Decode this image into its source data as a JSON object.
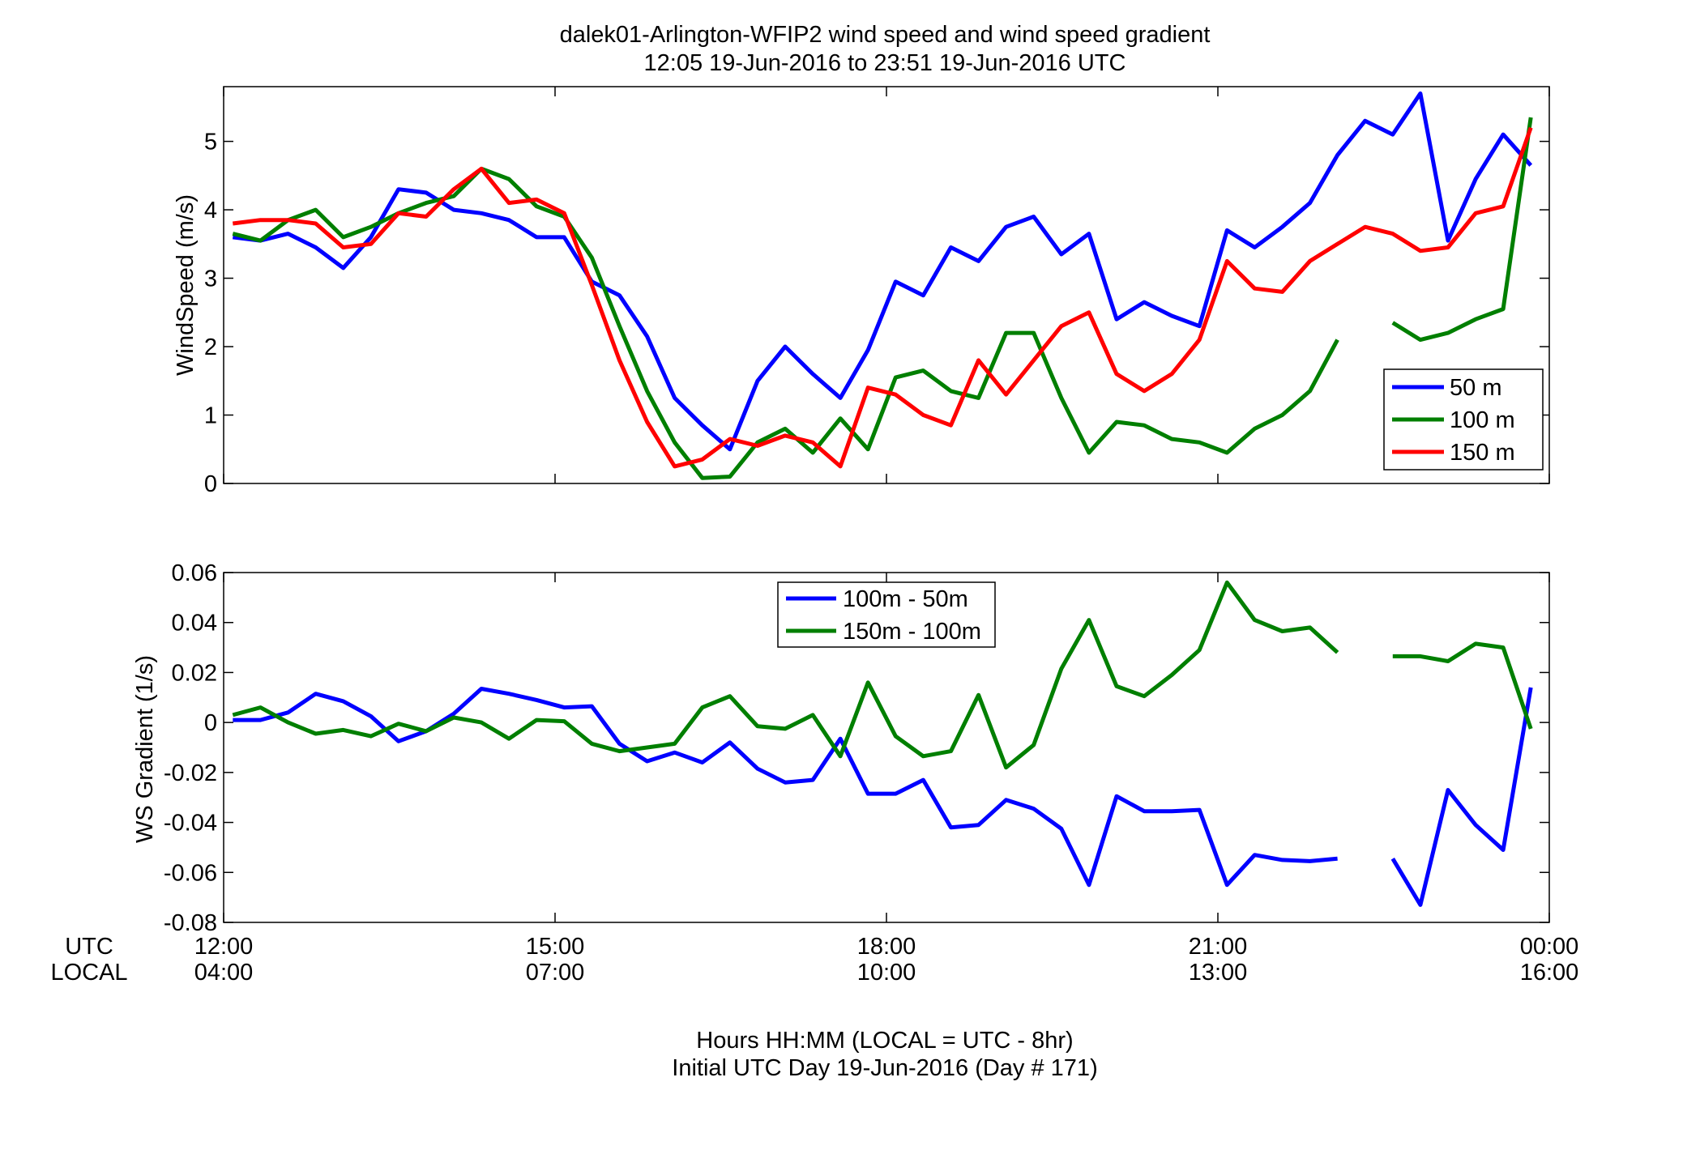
{
  "figure": {
    "title_line1": "dalek01-Arlington-WFIP2  wind speed and wind speed gradient",
    "title_line2": "12:05 19-Jun-2016 to 23:51 19-Jun-2016  UTC",
    "xlabel_line1": "Hours HH:MM  (LOCAL = UTC - 8hr)",
    "xlabel_line2": "Initial UTC Day 19-Jun-2016 (Day # 171)",
    "row_label_utc": "UTC",
    "row_label_local": "LOCAL",
    "x_ticks_utc": [
      "12:00",
      "15:00",
      "18:00",
      "21:00",
      "00:00"
    ],
    "x_ticks_local": [
      "04:00",
      "07:00",
      "10:00",
      "13:00",
      "16:00"
    ],
    "colors": {
      "blue": "#0000ff",
      "green": "#007f00",
      "red": "#ff0000"
    }
  },
  "chart_data": [
    {
      "type": "line",
      "ylabel": "WindSpeed (m/s)",
      "xlim_hours": [
        12,
        24
      ],
      "ylim": [
        0,
        5.8
      ],
      "yticks": [
        0,
        1,
        2,
        3,
        4,
        5
      ],
      "legend_position": "bottom-right",
      "x_hours": [
        12.083,
        12.333,
        12.583,
        12.833,
        13.083,
        13.333,
        13.583,
        13.833,
        14.083,
        14.333,
        14.583,
        14.833,
        15.083,
        15.333,
        15.583,
        15.833,
        16.083,
        16.333,
        16.583,
        16.833,
        17.083,
        17.333,
        17.583,
        17.833,
        18.083,
        18.333,
        18.583,
        18.833,
        19.083,
        19.333,
        19.583,
        19.833,
        20.083,
        20.333,
        20.583,
        20.833,
        21.083,
        21.333,
        21.583,
        21.833,
        22.083,
        22.333,
        22.583,
        22.833,
        23.083,
        23.333,
        23.583,
        23.833
      ],
      "series": [
        {
          "name": "50 m",
          "color": "#0000ff",
          "values": [
            3.6,
            3.55,
            3.65,
            3.45,
            3.15,
            3.6,
            4.3,
            4.25,
            4.0,
            3.95,
            3.85,
            3.6,
            3.6,
            2.95,
            2.75,
            2.15,
            1.25,
            0.85,
            0.5,
            1.5,
            2.0,
            1.6,
            1.25,
            1.95,
            2.95,
            2.75,
            3.45,
            3.25,
            3.75,
            3.9,
            3.35,
            3.65,
            2.4,
            2.65,
            2.45,
            2.3,
            3.7,
            3.45,
            3.75,
            4.1,
            4.8,
            5.3,
            5.1,
            5.7,
            3.55,
            4.45,
            5.1,
            4.65
          ]
        },
        {
          "name": "100 m",
          "color": "#007f00",
          "values": [
            3.65,
            3.55,
            3.85,
            4.0,
            3.6,
            3.75,
            3.95,
            4.1,
            4.2,
            4.6,
            4.45,
            4.05,
            3.9,
            3.3,
            2.3,
            1.35,
            0.6,
            0.08,
            0.1,
            0.6,
            0.8,
            0.45,
            0.95,
            0.5,
            1.55,
            1.65,
            1.35,
            1.25,
            2.2,
            2.2,
            1.25,
            0.45,
            0.9,
            0.85,
            0.65,
            0.6,
            0.45,
            0.8,
            1.0,
            1.35,
            2.1,
            null,
            2.35,
            2.1,
            2.2,
            2.4,
            2.55,
            5.35
          ]
        },
        {
          "name": "150 m",
          "color": "#ff0000",
          "values": [
            3.8,
            3.85,
            3.85,
            3.8,
            3.45,
            3.5,
            3.95,
            3.9,
            4.3,
            4.6,
            4.1,
            4.15,
            3.95,
            2.9,
            1.8,
            0.9,
            0.25,
            0.35,
            0.65,
            0.55,
            0.7,
            0.6,
            0.25,
            1.4,
            1.3,
            1.0,
            0.85,
            1.8,
            1.3,
            1.8,
            2.3,
            2.5,
            1.6,
            1.35,
            1.6,
            2.1,
            3.25,
            2.85,
            2.8,
            3.25,
            3.5,
            3.75,
            3.65,
            3.4,
            3.45,
            3.95,
            4.05,
            5.2
          ]
        }
      ]
    },
    {
      "type": "line",
      "ylabel": "WS Gradient (1/s)",
      "xlim_hours": [
        12,
        24
      ],
      "ylim": [
        -0.08,
        0.06
      ],
      "yticks": [
        -0.08,
        -0.06,
        -0.04,
        -0.02,
        0,
        0.02,
        0.04,
        0.06
      ],
      "ytick_labels": [
        "-0.08",
        "-0.06",
        "-0.04",
        "-0.02",
        "0",
        "0.02",
        "0.04",
        "0.06"
      ],
      "legend_position": "top-center",
      "x_hours": [
        12.083,
        12.333,
        12.583,
        12.833,
        13.083,
        13.333,
        13.583,
        13.833,
        14.083,
        14.333,
        14.583,
        14.833,
        15.083,
        15.333,
        15.583,
        15.833,
        16.083,
        16.333,
        16.583,
        16.833,
        17.083,
        17.333,
        17.583,
        17.833,
        18.083,
        18.333,
        18.583,
        18.833,
        19.083,
        19.333,
        19.583,
        19.833,
        20.083,
        20.333,
        20.583,
        20.833,
        21.083,
        21.333,
        21.583,
        21.833,
        22.083,
        22.333,
        22.583,
        22.833,
        23.083,
        23.333,
        23.583,
        23.833
      ],
      "series": [
        {
          "name": "100m - 50m",
          "color": "#0000ff",
          "values": [
            0.001,
            0.001,
            0.004,
            0.0115,
            0.0085,
            0.0025,
            -0.0075,
            -0.0035,
            0.0035,
            0.0135,
            0.0115,
            0.009,
            0.006,
            0.0065,
            -0.0085,
            -0.0155,
            -0.012,
            -0.016,
            -0.008,
            -0.0185,
            -0.024,
            -0.023,
            -0.0065,
            -0.0285,
            -0.0285,
            -0.023,
            -0.042,
            -0.041,
            -0.031,
            -0.0345,
            -0.0425,
            -0.065,
            -0.0295,
            -0.0355,
            -0.0355,
            -0.035,
            -0.065,
            -0.053,
            -0.055,
            -0.0555,
            -0.0545,
            null,
            -0.0545,
            -0.073,
            -0.027,
            -0.041,
            -0.051,
            0.014
          ]
        },
        {
          "name": "150m - 100m",
          "color": "#007f00",
          "values": [
            0.003,
            0.006,
            0.0,
            -0.0045,
            -0.003,
            -0.0055,
            -0.0005,
            -0.0035,
            0.002,
            0.0,
            -0.0065,
            0.001,
            0.0005,
            -0.0085,
            -0.0115,
            -0.01,
            -0.0085,
            0.006,
            0.0105,
            -0.0015,
            -0.0025,
            0.003,
            -0.0135,
            0.016,
            -0.0055,
            -0.0135,
            -0.0115,
            0.011,
            -0.018,
            -0.009,
            0.0215,
            0.041,
            0.0145,
            0.0105,
            0.019,
            0.029,
            0.056,
            0.041,
            0.0365,
            0.038,
            0.028,
            null,
            0.0265,
            0.0265,
            0.0245,
            0.0315,
            0.03,
            -0.0025
          ]
        }
      ]
    }
  ]
}
